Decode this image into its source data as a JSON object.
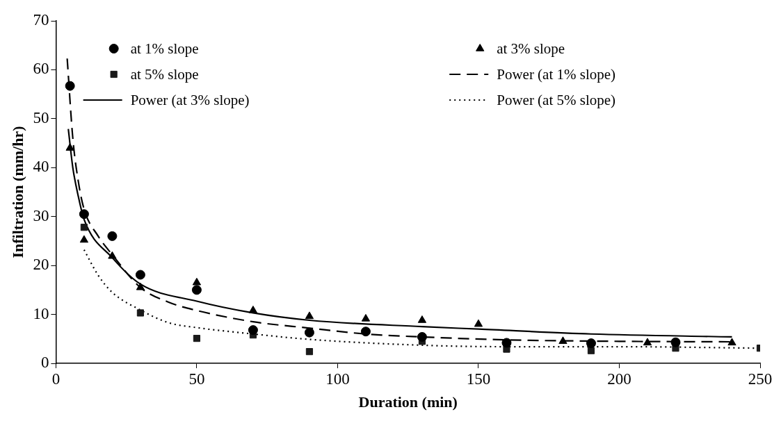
{
  "chart_data": {
    "type": "scatter",
    "xlabel": "Duration (min)",
    "ylabel": "Infiltration (mm/hr)",
    "xlim": [
      0,
      250
    ],
    "xticks": [
      0,
      50,
      100,
      150,
      200,
      250
    ],
    "ylim": [
      0,
      70
    ],
    "yticks": [
      0,
      10,
      20,
      30,
      40,
      50,
      60,
      70
    ],
    "grid": false,
    "legend": "top",
    "series": [
      {
        "name": "at 1% slope",
        "marker": "circle",
        "color": "#000000",
        "x": [
          5,
          10,
          20,
          30,
          50,
          70,
          90,
          110,
          130,
          160,
          190,
          220
        ],
        "values": [
          56.7,
          30.5,
          26.0,
          18.1,
          15.0,
          6.8,
          6.3,
          6.5,
          5.4,
          4.2,
          4.1,
          4.3
        ]
      },
      {
        "name": "at 3% slope",
        "marker": "triangle",
        "color": "#000000",
        "x": [
          5,
          10,
          20,
          30,
          50,
          70,
          90,
          110,
          130,
          150,
          180,
          210,
          240
        ],
        "values": [
          44.0,
          25.2,
          21.9,
          15.5,
          16.5,
          10.8,
          9.6,
          9.1,
          8.8,
          8.0,
          4.5,
          4.2,
          4.2
        ]
      },
      {
        "name": "at 5% slope",
        "marker": "square",
        "color": "#1a1a1a",
        "x": [
          10,
          30,
          50,
          70,
          90,
          130,
          160,
          190,
          220,
          250
        ],
        "values": [
          27.8,
          10.3,
          5.1,
          5.8,
          2.4,
          4.5,
          2.9,
          2.6,
          3.1,
          3.1
        ]
      },
      {
        "name": "Power (at 1% slope)",
        "type": "line",
        "line_style": "dashed",
        "marker": "none",
        "color": "#000000",
        "x": [
          4,
          6,
          8,
          10,
          15,
          20,
          30,
          40,
          50,
          70,
          90,
          110,
          130,
          160,
          200,
          240
        ],
        "values": [
          62.3,
          46,
          37,
          31.5,
          26,
          22.2,
          15.5,
          12.5,
          10.8,
          8.5,
          7.2,
          6.0,
          5.4,
          4.8,
          4.5,
          4.4
        ]
      },
      {
        "name": "Power (at 3% slope)",
        "type": "line",
        "line_style": "solid",
        "marker": "none",
        "color": "#000000",
        "x": [
          4.4,
          6,
          8,
          10,
          20,
          30,
          50,
          70,
          90,
          130,
          150,
          190,
          240
        ],
        "values": [
          47.9,
          40,
          34,
          29.4,
          21.6,
          16.2,
          12.7,
          10.3,
          8.8,
          7.5,
          7.0,
          6.0,
          5.4
        ]
      },
      {
        "name": "Power (at 5% slope)",
        "type": "line",
        "line_style": "dotted",
        "marker": "none",
        "color": "#000000",
        "x": [
          10,
          15,
          20,
          30,
          40,
          50,
          70,
          90,
          130,
          160,
          200,
          250
        ],
        "values": [
          23.2,
          18.0,
          14.5,
          10.9,
          8.3,
          7.3,
          6.0,
          4.9,
          3.7,
          3.4,
          3.4,
          3.1
        ]
      }
    ]
  }
}
